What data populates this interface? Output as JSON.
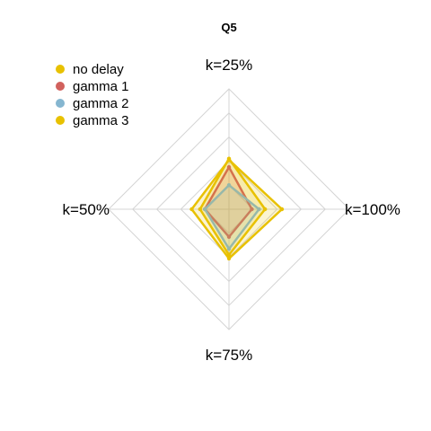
{
  "chart_data": {
    "type": "radar",
    "title": "Q5",
    "axes": [
      "k=25%",
      "k=100%",
      "k=75%",
      "k=50%"
    ],
    "rmax": 5,
    "grid_levels": 5,
    "grid": true,
    "legend_position": "top-left",
    "series": [
      {
        "name": "no delay",
        "color": "#e8c100",
        "values": [
          2.1,
          1.5,
          1.9,
          1.2
        ]
      },
      {
        "name": "gamma 1",
        "color": "#d1615d",
        "values": [
          1.75,
          0.95,
          1.15,
          1.0
        ]
      },
      {
        "name": "gamma 2",
        "color": "#85b6d0",
        "values": [
          1.0,
          1.25,
          1.65,
          1.0
        ]
      },
      {
        "name": "gamma 3",
        "color": "#e8c100",
        "values": [
          2.05,
          2.2,
          2.05,
          1.55
        ]
      }
    ]
  }
}
